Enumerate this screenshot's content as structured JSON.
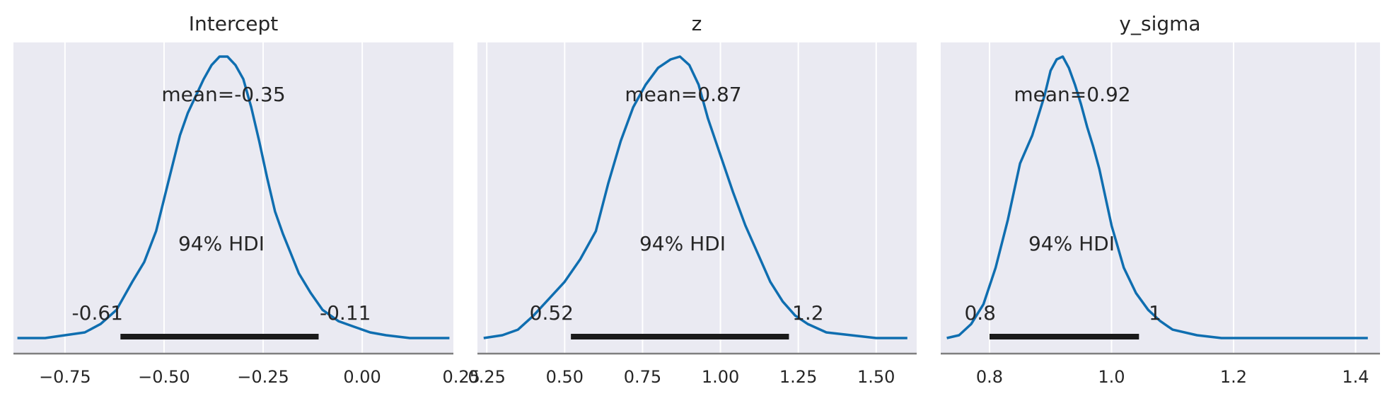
{
  "chart_data": [
    {
      "type": "line",
      "title": "Intercept",
      "xlim": [
        -0.88,
        0.23
      ],
      "xticks": [
        -0.75,
        -0.5,
        -0.25,
        0.0,
        0.25
      ],
      "xtick_labels": [
        "−0.75",
        "−0.50",
        "−0.25",
        "0.00",
        "0.25"
      ],
      "density": {
        "x": [
          -0.87,
          -0.8,
          -0.75,
          -0.7,
          -0.66,
          -0.62,
          -0.58,
          -0.55,
          -0.52,
          -0.49,
          -0.46,
          -0.44,
          -0.42,
          -0.4,
          -0.38,
          -0.36,
          -0.34,
          -0.32,
          -0.3,
          -0.28,
          -0.26,
          -0.24,
          -0.22,
          -0.2,
          -0.18,
          -0.16,
          -0.13,
          -0.1,
          -0.06,
          -0.02,
          0.02,
          0.06,
          0.12,
          0.22
        ],
        "y": [
          0.0,
          0.0,
          0.01,
          0.02,
          0.05,
          0.1,
          0.2,
          0.27,
          0.38,
          0.55,
          0.72,
          0.8,
          0.86,
          0.92,
          0.97,
          1.0,
          1.0,
          0.97,
          0.92,
          0.82,
          0.7,
          0.57,
          0.45,
          0.37,
          0.3,
          0.23,
          0.16,
          0.1,
          0.06,
          0.04,
          0.02,
          0.01,
          0.0,
          0.0
        ]
      },
      "mean_label": "mean=-0.35",
      "hdi_label": "94% HDI",
      "hdi": [
        -0.61,
        -0.11
      ],
      "hdi_low_label": "-0.61",
      "hdi_high_label": "-0.11"
    },
    {
      "type": "line",
      "title": "z",
      "xlim": [
        0.22,
        1.63
      ],
      "xticks": [
        0.25,
        0.5,
        0.75,
        1.0,
        1.25,
        1.5
      ],
      "xtick_labels": [
        "0.25",
        "0.50",
        "0.75",
        "1.00",
        "1.25",
        "1.50"
      ],
      "density": {
        "x": [
          0.24,
          0.3,
          0.35,
          0.4,
          0.45,
          0.5,
          0.55,
          0.6,
          0.64,
          0.68,
          0.72,
          0.76,
          0.8,
          0.84,
          0.87,
          0.9,
          0.93,
          0.96,
          1.0,
          1.04,
          1.08,
          1.12,
          1.16,
          1.2,
          1.24,
          1.28,
          1.34,
          1.42,
          1.5,
          1.6
        ],
        "y": [
          0.0,
          0.01,
          0.03,
          0.08,
          0.14,
          0.2,
          0.28,
          0.38,
          0.55,
          0.7,
          0.82,
          0.9,
          0.96,
          0.99,
          1.0,
          0.97,
          0.9,
          0.78,
          0.65,
          0.52,
          0.4,
          0.3,
          0.2,
          0.13,
          0.08,
          0.05,
          0.02,
          0.01,
          0.0,
          0.0
        ]
      },
      "mean_label": "mean=0.87",
      "hdi_label": "94% HDI",
      "hdi": [
        0.52,
        1.22
      ],
      "hdi_low_label": "0.52",
      "hdi_high_label": "1.2"
    },
    {
      "type": "line",
      "title": "y_sigma",
      "xlim": [
        0.72,
        1.44
      ],
      "xticks": [
        0.8,
        1.0,
        1.2,
        1.4
      ],
      "xtick_labels": [
        "0.8",
        "1.0",
        "1.2",
        "1.4"
      ],
      "density": {
        "x": [
          0.73,
          0.75,
          0.77,
          0.79,
          0.81,
          0.83,
          0.85,
          0.87,
          0.89,
          0.9,
          0.91,
          0.92,
          0.93,
          0.94,
          0.95,
          0.96,
          0.97,
          0.98,
          1.0,
          1.02,
          1.04,
          1.06,
          1.08,
          1.1,
          1.14,
          1.18,
          1.3,
          1.42
        ],
        "y": [
          0.0,
          0.01,
          0.05,
          0.12,
          0.25,
          0.42,
          0.62,
          0.72,
          0.86,
          0.95,
          0.99,
          1.0,
          0.96,
          0.9,
          0.83,
          0.75,
          0.68,
          0.6,
          0.4,
          0.25,
          0.16,
          0.1,
          0.06,
          0.03,
          0.01,
          0.0,
          0.0,
          0.0
        ]
      },
      "mean_label": "mean=0.92",
      "hdi_label": "94% HDI",
      "hdi": [
        0.8,
        1.045
      ],
      "hdi_low_label": "0.8",
      "hdi_high_label": "1"
    }
  ],
  "colors": {
    "background": "#eaeaf2",
    "grid": "#ffffff",
    "line": "#0f6eb0",
    "hdi_bar": "#1a1a1a",
    "axis": "#7f7f7f"
  }
}
